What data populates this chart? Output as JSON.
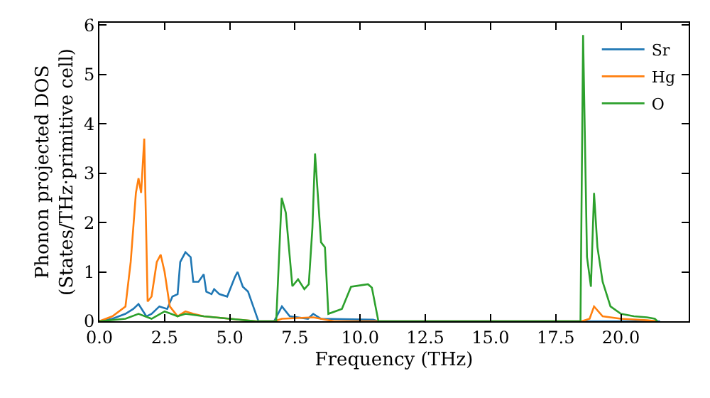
{
  "chart_data": {
    "type": "line",
    "xlabel": "Frequency (THz)",
    "ylabel": "Phonon projected DOS\n(States/THz·primitive cell)",
    "xlim": [
      0,
      22.6
    ],
    "ylim": [
      0,
      6.05
    ],
    "xticks": [
      {
        "value": 0,
        "label": "0.0"
      },
      {
        "value": 2.5,
        "label": "2.5"
      },
      {
        "value": 5,
        "label": "5.0"
      },
      {
        "value": 7.5,
        "label": "7.5"
      },
      {
        "value": 10,
        "label": "10.0"
      },
      {
        "value": 12.5,
        "label": "12.5"
      },
      {
        "value": 15,
        "label": "15.0"
      },
      {
        "value": 17.5,
        "label": "17.5"
      },
      {
        "value": 20,
        "label": "20.0"
      }
    ],
    "yticks": [
      0,
      1,
      2,
      3,
      4,
      5,
      6
    ],
    "legend": "top right",
    "marker": "none",
    "line_style": "solid",
    "series": [
      {
        "name": "Sr",
        "color": "#1f77b4",
        "x": [
          0,
          0.5,
          1.0,
          1.3,
          1.5,
          1.8,
          2.0,
          2.3,
          2.6,
          2.8,
          3.0,
          3.1,
          3.3,
          3.5,
          3.6,
          3.8,
          4.0,
          4.1,
          4.3,
          4.4,
          4.6,
          4.9,
          5.2,
          5.3,
          5.5,
          5.7,
          5.9,
          6.1,
          6.7,
          7.0,
          7.3,
          8.0,
          8.2,
          8.5,
          10.5,
          10.7,
          18.5,
          21.5
        ],
        "values": [
          0,
          0.05,
          0.15,
          0.25,
          0.35,
          0.1,
          0.15,
          0.3,
          0.25,
          0.5,
          0.55,
          1.2,
          1.4,
          1.3,
          0.8,
          0.8,
          0.95,
          0.6,
          0.55,
          0.65,
          0.55,
          0.5,
          0.9,
          1.0,
          0.7,
          0.6,
          0.3,
          0,
          0,
          0.3,
          0.1,
          0.05,
          0.15,
          0.05,
          0.03,
          0,
          0,
          0
        ]
      },
      {
        "name": "Hg",
        "color": "#ff7f0e",
        "x": [
          0,
          0.5,
          1.0,
          1.2,
          1.4,
          1.5,
          1.6,
          1.72,
          1.85,
          2.0,
          2.2,
          2.35,
          2.5,
          2.7,
          3.0,
          3.3,
          3.6,
          4.0,
          5.0,
          6.0,
          6.7,
          7.0,
          8.2,
          9.0,
          18.5,
          18.8,
          18.97,
          19.3,
          20.0,
          21.0,
          21.4
        ],
        "values": [
          0,
          0.1,
          0.3,
          1.2,
          2.6,
          2.9,
          2.6,
          3.7,
          0.4,
          0.5,
          1.2,
          1.35,
          1.0,
          0.3,
          0.1,
          0.2,
          0.15,
          0.1,
          0.05,
          0,
          0,
          0.05,
          0.08,
          0,
          0,
          0.05,
          0.3,
          0.1,
          0.05,
          0.02,
          0
        ]
      },
      {
        "name": "O",
        "color": "#2ca02c",
        "x": [
          0,
          1.0,
          1.5,
          2.0,
          2.5,
          3.0,
          3.3,
          4.0,
          5.0,
          6.0,
          6.78,
          6.99,
          7.15,
          7.4,
          7.62,
          7.86,
          8.03,
          8.17,
          8.27,
          8.5,
          8.65,
          8.78,
          9.3,
          9.65,
          10.3,
          10.45,
          10.7,
          18.45,
          18.55,
          18.7,
          18.85,
          18.97,
          19.1,
          19.3,
          19.6,
          20.0,
          20.5,
          21.0,
          21.3,
          21.4
        ],
        "values": [
          0,
          0.05,
          0.15,
          0.05,
          0.2,
          0.1,
          0.15,
          0.1,
          0.05,
          0,
          0,
          2.5,
          2.2,
          0.71,
          0.85,
          0.65,
          0.75,
          1.9,
          3.4,
          1.6,
          1.5,
          0.15,
          0.25,
          0.7,
          0.75,
          0.68,
          0,
          0,
          5.8,
          1.3,
          0.7,
          2.6,
          1.5,
          0.8,
          0.3,
          0.15,
          0.1,
          0.08,
          0.05,
          0
        ]
      }
    ]
  }
}
